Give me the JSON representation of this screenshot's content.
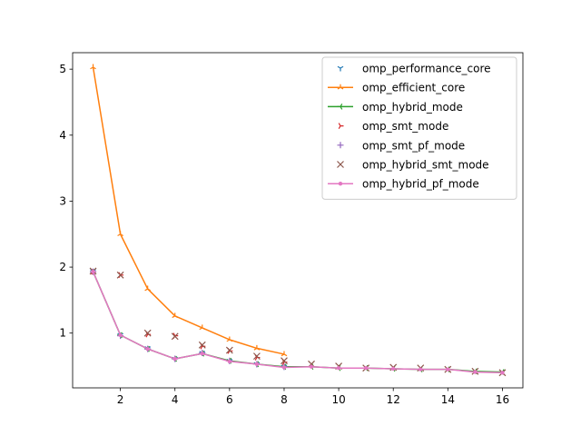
{
  "chart_data": {
    "type": "line",
    "title": "",
    "xlabel": "",
    "ylabel": "",
    "xlim": [
      0.25,
      16.75
    ],
    "ylim": [
      0.17,
      5.25
    ],
    "xticks": [
      2,
      4,
      6,
      8,
      10,
      12,
      14,
      16
    ],
    "yticks": [
      1,
      2,
      3,
      4,
      5
    ],
    "grid": false,
    "legend_position": "top-right",
    "series": [
      {
        "name": "omp_performance_core",
        "color": "#1f77b4",
        "marker": "tri_down",
        "line": false,
        "x": [
          1,
          2,
          3,
          4,
          5,
          6,
          7,
          8
        ],
        "y": [
          1.94,
          0.97,
          0.77,
          0.61,
          0.7,
          0.58,
          0.53,
          0.49
        ]
      },
      {
        "name": "omp_efficient_core",
        "color": "#ff7f0e",
        "marker": "tri_up",
        "line": true,
        "x": [
          1,
          2,
          3,
          4,
          5,
          6,
          7,
          8
        ],
        "y": [
          5.03,
          2.5,
          1.67,
          1.26,
          1.08,
          0.9,
          0.77,
          0.68
        ]
      },
      {
        "name": "omp_hybrid_mode",
        "color": "#2ca02c",
        "marker": "tri_left",
        "line": true,
        "x": [
          1,
          2,
          3,
          4,
          5,
          6,
          7,
          8,
          9,
          10,
          11,
          12,
          13,
          14,
          15,
          16
        ],
        "y": [
          1.93,
          0.97,
          0.76,
          0.61,
          0.69,
          0.58,
          0.53,
          0.49,
          0.49,
          0.47,
          0.47,
          0.46,
          0.45,
          0.45,
          0.42,
          0.41
        ]
      },
      {
        "name": "omp_smt_mode",
        "color": "#d62728",
        "marker": "tri_right",
        "line": false,
        "x": [
          1,
          2,
          3,
          4,
          5,
          6,
          7,
          8
        ],
        "y": [
          1.93,
          1.88,
          0.98,
          0.96,
          0.8,
          0.73,
          0.63,
          0.56
        ]
      },
      {
        "name": "omp_smt_pf_mode",
        "color": "#9467bd",
        "marker": "plus",
        "line": false,
        "x": [
          1,
          2,
          3,
          4,
          5,
          6,
          7,
          8
        ],
        "y": [
          1.93,
          0.96,
          0.76,
          0.61,
          0.7,
          0.58,
          0.53,
          0.49
        ]
      },
      {
        "name": "omp_hybrid_smt_mode",
        "color": "#8c564b",
        "marker": "x",
        "line": false,
        "x": [
          1,
          2,
          3,
          4,
          5,
          6,
          7,
          8,
          9,
          10,
          11,
          12,
          13,
          14,
          15,
          16
        ],
        "y": [
          1.94,
          1.88,
          1.0,
          0.95,
          0.82,
          0.74,
          0.65,
          0.58,
          0.53,
          0.5,
          0.47,
          0.48,
          0.47,
          0.45,
          0.42,
          0.4
        ]
      },
      {
        "name": "omp_hybrid_pf_mode",
        "color": "#e377c2",
        "marker": "point",
        "line": true,
        "x": [
          1,
          2,
          3,
          4,
          5,
          6,
          7,
          8,
          9,
          10,
          11,
          12,
          13,
          14,
          15,
          16
        ],
        "y": [
          1.93,
          0.97,
          0.76,
          0.61,
          0.69,
          0.57,
          0.53,
          0.48,
          0.49,
          0.47,
          0.47,
          0.46,
          0.45,
          0.45,
          0.41,
          0.4
        ]
      }
    ]
  }
}
